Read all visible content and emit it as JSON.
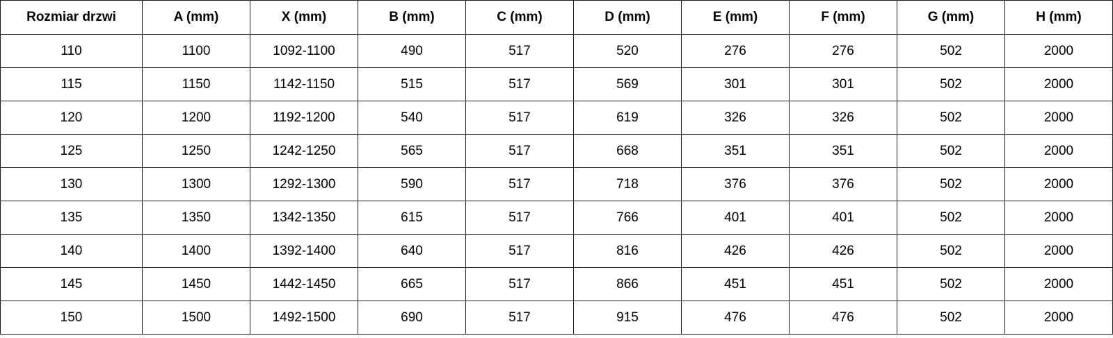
{
  "table": {
    "headers": [
      "Rozmiar drzwi",
      "A (mm)",
      "X (mm)",
      "B (mm)",
      "C (mm)",
      "D (mm)",
      "E (mm)",
      "F (mm)",
      "G (mm)",
      "H (mm)"
    ],
    "rows": [
      [
        "110",
        "1100",
        "1092-1100",
        "490",
        "517",
        "520",
        "276",
        "276",
        "502",
        "2000"
      ],
      [
        "115",
        "1150",
        "1142-1150",
        "515",
        "517",
        "569",
        "301",
        "301",
        "502",
        "2000"
      ],
      [
        "120",
        "1200",
        "1192-1200",
        "540",
        "517",
        "619",
        "326",
        "326",
        "502",
        "2000"
      ],
      [
        "125",
        "1250",
        "1242-1250",
        "565",
        "517",
        "668",
        "351",
        "351",
        "502",
        "2000"
      ],
      [
        "130",
        "1300",
        "1292-1300",
        "590",
        "517",
        "718",
        "376",
        "376",
        "502",
        "2000"
      ],
      [
        "135",
        "1350",
        "1342-1350",
        "615",
        "517",
        "766",
        "401",
        "401",
        "502",
        "2000"
      ],
      [
        "140",
        "1400",
        "1392-1400",
        "640",
        "517",
        "816",
        "426",
        "426",
        "502",
        "2000"
      ],
      [
        "145",
        "1450",
        "1442-1450",
        "665",
        "517",
        "866",
        "451",
        "451",
        "502",
        "2000"
      ],
      [
        "150",
        "1500",
        "1492-1500",
        "690",
        "517",
        "915",
        "476",
        "476",
        "502",
        "2000"
      ]
    ]
  }
}
